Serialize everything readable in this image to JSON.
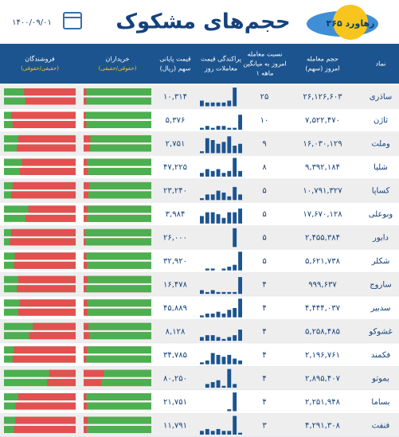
{
  "header": {
    "title": "حجم‌های مشکوک",
    "date": "۱۴۰۰/۰۹/۰۱",
    "logo": "رهاورد ۳۶۵"
  },
  "table": {
    "columns": [
      [
        "نماد"
      ],
      [
        "حجم معامله",
        "امروز (سهم)"
      ],
      [
        "نسبت معامله",
        "امروز به میانگین",
        "۱ ماهه"
      ],
      [
        "پراکندگی قیمت",
        "معاملات روز"
      ],
      [
        "قیمت پایانی",
        "سهم (ریال)"
      ],
      [
        "خریداران",
        "(حقوقی/حقیقی)"
      ],
      [
        "فروشندگان",
        "(حقیقی/حقوقی)"
      ]
    ],
    "rows": [
      {
        "symbol": "ساذری",
        "volume": "۲۶,۱۲۶,۶۰۳",
        "ratio": "۲۵",
        "price": "۱۰,۳۱۴",
        "dispersion": [
          3,
          2,
          2,
          2,
          2,
          3,
          10,
          0
        ],
        "buyers": [
          96,
          96
        ],
        "sellers": [
          72,
          70
        ]
      },
      {
        "symbol": "ثاژن",
        "volume": "۷,۵۲۲,۴۷۰",
        "ratio": "۱۰",
        "price": "۵,۳۷۶",
        "dispersion": [
          1,
          2,
          1,
          2,
          2,
          1,
          1,
          8
        ],
        "buyers": [
          97,
          96
        ],
        "sellers": [
          90,
          88
        ]
      },
      {
        "symbol": "وملت",
        "volume": "۱۶,۰۳۰,۱۲۹",
        "ratio": "۹",
        "price": "۲,۷۵۱",
        "dispersion": [
          1,
          8,
          7,
          5,
          6,
          9,
          4,
          5
        ],
        "buyers": [
          90,
          91
        ],
        "sellers": [
          80,
          82
        ]
      },
      {
        "symbol": "شلیا",
        "volume": "۹,۳۹۲,۱۸۴",
        "ratio": "۸",
        "price": "۴۷,۲۲۵",
        "dispersion": [
          2,
          4,
          3,
          4,
          2,
          3,
          10,
          3
        ],
        "buyers": [
          95,
          94
        ],
        "sellers": [
          75,
          78
        ]
      },
      {
        "symbol": "کساپا",
        "volume": "۱۰,۷۹۱,۳۲۷",
        "ratio": "۵",
        "price": "۲۳,۲۴۰",
        "dispersion": [
          1,
          3,
          3,
          5,
          4,
          2,
          7,
          3
        ],
        "buyers": [
          92,
          93
        ],
        "sellers": [
          88,
          90
        ]
      },
      {
        "symbol": "وبوعلی",
        "volume": "۱۷,۶۷۰,۱۲۸",
        "ratio": "۵",
        "price": "۳,۹۸۴",
        "dispersion": [
          4,
          6,
          6,
          5,
          3,
          6,
          6,
          8
        ],
        "buyers": [
          94,
          95
        ],
        "sellers": [
          66,
          70
        ]
      },
      {
        "symbol": "دابور",
        "volume": "۲,۴۵۵,۳۸۴",
        "ratio": "۵",
        "price": "۲۶,۰۰۰",
        "dispersion": [
          0,
          0,
          0,
          0,
          0,
          0,
          10,
          0
        ],
        "buyers": [
          98,
          97
        ],
        "sellers": [
          90,
          92
        ]
      },
      {
        "symbol": "شکلر",
        "volume": "۵,۶۲۱,۷۳۸",
        "ratio": "۵",
        "price": "۳۲,۹۲۰",
        "dispersion": [
          0,
          1,
          1,
          0,
          1,
          2,
          3,
          10
        ],
        "buyers": [
          96,
          95
        ],
        "sellers": [
          85,
          86
        ]
      },
      {
        "symbol": "ساروج",
        "volume": "۹۹۹,۶۳۷",
        "ratio": "۴",
        "price": "۱۶,۴۷۸",
        "dispersion": [
          2,
          1,
          2,
          1,
          1,
          1,
          1,
          9
        ],
        "buyers": [
          94,
          96
        ],
        "sellers": [
          80,
          82
        ]
      },
      {
        "symbol": "سدبیر",
        "volume": "۴,۴۴۴,۰۳۷",
        "ratio": "۴",
        "price": "۴۵,۸۸۹",
        "dispersion": [
          1,
          2,
          2,
          3,
          2,
          4,
          5,
          10
        ],
        "buyers": [
          95,
          94
        ],
        "sellers": [
          78,
          80
        ]
      },
      {
        "symbol": "غشوکو",
        "volume": "۵,۲۵۸,۴۸۵",
        "ratio": "۴",
        "price": "۸,۱۲۸",
        "dispersion": [
          2,
          3,
          3,
          2,
          1,
          2,
          3,
          6
        ],
        "buyers": [
          93,
          92
        ],
        "sellers": [
          60,
          65
        ]
      },
      {
        "symbol": "فکمند",
        "volume": "۲,۱۹۶,۷۶۱",
        "ratio": "۴",
        "price": "۳۴,۷۸۵",
        "dispersion": [
          1,
          2,
          6,
          5,
          4,
          5,
          3,
          2
        ],
        "buyers": [
          95,
          96
        ],
        "sellers": [
          86,
          88
        ]
      },
      {
        "symbol": "بموتو",
        "volume": "۲,۸۹۵,۴۰۷",
        "ratio": "۴",
        "price": "۸۰,۲۵۰",
        "dispersion": [
          0,
          2,
          3,
          4,
          1,
          10,
          2,
          0
        ],
        "buyers": [
          70,
          74
        ],
        "sellers": [
          37,
          40
        ]
      },
      {
        "symbol": "بساما",
        "volume": "۲,۲۵۱,۹۴۸",
        "ratio": "۴",
        "price": "۲۱,۷۵۱",
        "dispersion": [
          0,
          0,
          0,
          0,
          0,
          1,
          10,
          0
        ],
        "buyers": [
          96,
          95
        ],
        "sellers": [
          80,
          84
        ]
      },
      {
        "symbol": "فنفت",
        "volume": "۴,۲۹۱,۳۰۸",
        "ratio": "۳",
        "price": "۱۱,۷۹۱",
        "dispersion": [
          2,
          3,
          2,
          3,
          2,
          2,
          10,
          1
        ],
        "buyers": [
          94,
          95
        ],
        "sellers": [
          84,
          86
        ]
      }
    ]
  }
}
